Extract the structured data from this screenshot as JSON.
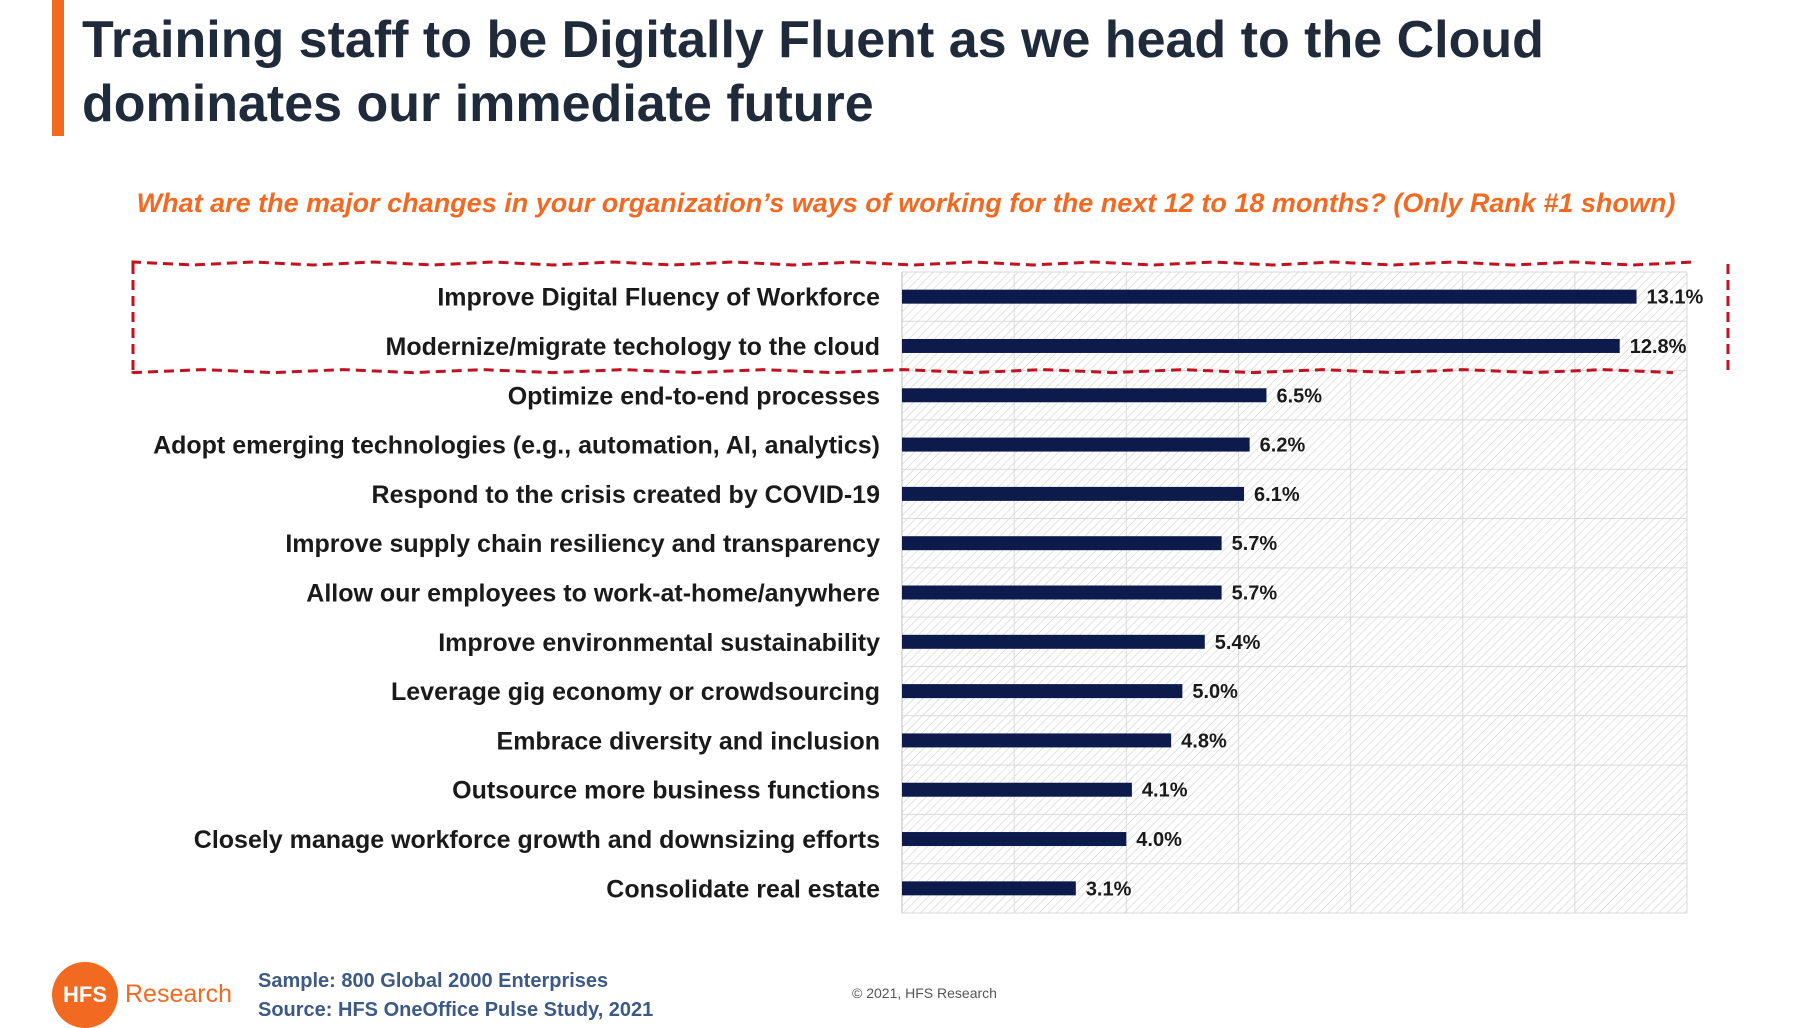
{
  "header": {
    "title": "Training staff to be Digitally Fluent as we head to the Cloud dominates our immediate future",
    "subtitle": "What are the major changes in your organization’s ways of working for the next 12 to 18 months?  (Only Rank #1 shown)"
  },
  "colors": {
    "accent": "#f26a22",
    "bar": "#0d1b4c",
    "highlight_border": "#c0121f",
    "title": "#1f2a3a",
    "footer_text": "#3c5a85"
  },
  "chart_data": {
    "type": "bar",
    "orientation": "horizontal",
    "title": "What are the major changes in your organization’s ways of working for the next 12 to 18 months?  (Only Rank #1 shown)",
    "categories": [
      "Improve Digital Fluency of Workforce",
      "Modernize/migrate techology to the cloud",
      "Optimize end-to-end processes",
      "Adopt emerging technologies (e.g., automation, AI, analytics)",
      "Respond to the crisis created by COVID-19",
      "Improve supply chain resiliency and transparency",
      "Allow our employees to work-at-home/anywhere",
      "Improve environmental sustainability",
      "Leverage gig economy or crowdsourcing",
      "Embrace diversity and inclusion",
      "Outsource more business functions",
      "Closely manage workforce growth and downsizing efforts",
      "Consolidate real estate"
    ],
    "values": [
      13.1,
      12.8,
      6.5,
      6.2,
      6.1,
      5.7,
      5.7,
      5.4,
      5.0,
      4.8,
      4.1,
      4.0,
      3.1
    ],
    "data_labels": [
      "13.1%",
      "12.8%",
      "6.5%",
      "6.2%",
      "6.1%",
      "5.7%",
      "5.7%",
      "5.4%",
      "5.0%",
      "4.8%",
      "4.1%",
      "4.0%",
      "3.1%"
    ],
    "xlim": [
      0,
      14
    ],
    "grid": true,
    "highlighted_categories": [
      0,
      1
    ]
  },
  "footer": {
    "logo_text": "HFS",
    "brand": "Research",
    "sample": "Sample: 800 Global 2000 Enterprises",
    "source": "Source:  HFS OneOffice Pulse Study, 2021",
    "copyright": "© 2021, HFS Research"
  }
}
